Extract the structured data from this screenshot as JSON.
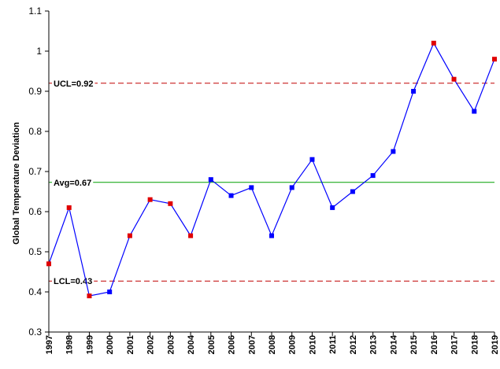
{
  "chart_data": {
    "type": "line",
    "title": "",
    "xlabel": "",
    "ylabel": "Global Temperature Deviation",
    "x": [
      "1997",
      "1998",
      "1999",
      "2000",
      "2001",
      "2002",
      "2003",
      "2004",
      "2005",
      "2006",
      "2007",
      "2008",
      "2009",
      "2010",
      "2011",
      "2012",
      "2013",
      "2014",
      "2015",
      "2016",
      "2017",
      "2018",
      "2019"
    ],
    "series": [
      {
        "values": [
          0.47,
          0.61,
          0.39,
          0.4,
          0.54,
          0.63,
          0.62,
          0.54,
          0.68,
          0.64,
          0.66,
          0.54,
          0.66,
          0.73,
          0.61,
          0.65,
          0.69,
          0.75,
          0.9,
          1.02,
          0.93,
          0.85,
          0.98
        ],
        "point_colors": [
          "red",
          "red",
          "red",
          "blue",
          "red",
          "red",
          "red",
          "red",
          "blue",
          "blue",
          "blue",
          "blue",
          "blue",
          "blue",
          "blue",
          "blue",
          "blue",
          "blue",
          "blue",
          "red",
          "red",
          "blue",
          "red"
        ]
      }
    ],
    "reference_lines": [
      {
        "label": "UCL=0.92",
        "value": 0.92,
        "style": "dashed",
        "color": "#c00000"
      },
      {
        "label": "Avg=0.67",
        "value": 0.673,
        "style": "solid",
        "color": "#00a000"
      },
      {
        "label": "LCL=0.43",
        "value": 0.427,
        "style": "dashed",
        "color": "#c00000"
      }
    ],
    "ylim": [
      0.3,
      1.1
    ],
    "yticks": [
      "0.3",
      "0.4",
      "0.5",
      "0.6",
      "0.7",
      "0.8",
      "0.9",
      "1",
      "1.1"
    ],
    "grid": false,
    "colors": {
      "line": "#0000ff",
      "blue": "#0000ff",
      "red": "#e00000",
      "axis": "#000000"
    }
  }
}
